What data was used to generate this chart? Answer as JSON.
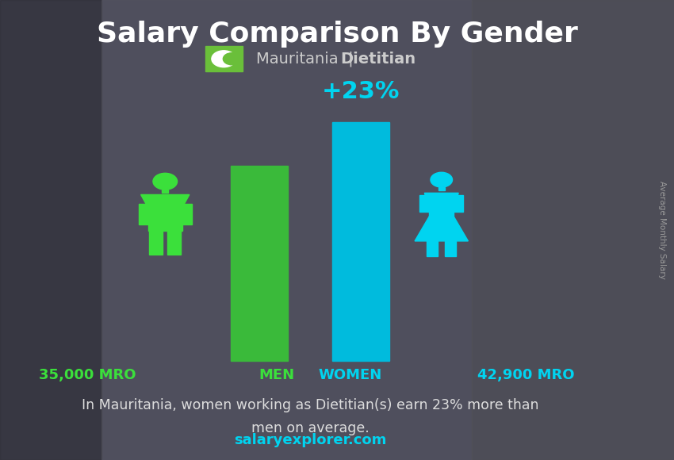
{
  "title": "Salary Comparison By Gender",
  "subtitle_country": "Mauritania",
  "subtitle_job": "Dietitian",
  "men_salary": 35000,
  "women_salary": 42900,
  "men_salary_label": "35,000 MRO",
  "women_salary_label": "42,900 MRO",
  "percent_diff": "+23%",
  "men_label": "MEN",
  "women_label": "WOMEN",
  "men_color": "#3be03b",
  "women_color": "#00d4f0",
  "men_bar_color": "#3aba3a",
  "women_bar_color": "#00bbdd",
  "bg_color": "#4a4a5a",
  "bg_color2": "#3a3a4a",
  "title_color": "#ffffff",
  "men_salary_color": "#3be03b",
  "women_salary_color": "#00d4f0",
  "men_label_color": "#3be03b",
  "women_label_color": "#00d4f0",
  "percent_color": "#00d4f0",
  "description_line1": "In Mauritania, women working as Dietitian(s) earn 23% more than",
  "description_line2": "men on average.",
  "website": "salaryexplorer.com",
  "ylabel": "Average Monthly Salary",
  "flag_color": "#6abf3a",
  "subtitle_color": "#cccccc",
  "desc_color": "#dddddd",
  "website_color": "#00d4f0",
  "ylabel_color": "#999999"
}
